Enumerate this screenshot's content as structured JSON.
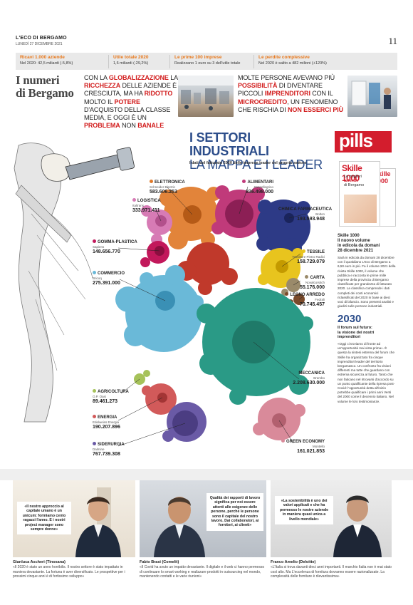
{
  "header": {
    "paper_name": "L'ECO DI BERGAMO",
    "date": "LUNEDÌ 27 DICEMBRE 2021",
    "page_number": "11"
  },
  "strip": [
    {
      "title": "Ricavi 1.000 aziende",
      "text": "Nel 2020: 42,5 miliardi (-5,8%)"
    },
    {
      "title": "Utile totale 2020",
      "text": "1,6 miliardi (-29,2%)"
    },
    {
      "title": "Le prime 100 imprese",
      "text": "Realizzano 1 euro su 3 dell'utile totale"
    },
    {
      "title": "Le perdite complessive",
      "text": "Nel 2020 è salito a 482 milioni (+120%)"
    }
  ],
  "intro": {
    "section_title_1": "I numeri",
    "section_title_2": "di Bergamo",
    "left_text": [
      {
        "t": "CON LA ",
        "h": false
      },
      {
        "t": "GLOBALIZZAZIONE",
        "h": true
      },
      {
        "t": " LA ",
        "h": false
      },
      {
        "t": "RICCHEZZA",
        "h": true
      },
      {
        "t": " DELLE AZIENDE È CRESCIUTA, MA HA ",
        "h": false
      },
      {
        "t": "RIDOTTO",
        "h": true
      },
      {
        "t": " MOLTO IL ",
        "h": false
      },
      {
        "t": "POTERE",
        "h": true
      },
      {
        "t": " D'ACQUISTO DELLA CLASSE MEDIA, E OGGI È UN ",
        "h": false
      },
      {
        "t": "PROBLEMA",
        "h": true
      },
      {
        "t": " NON ",
        "h": false
      },
      {
        "t": "BANALE",
        "h": true
      }
    ],
    "right_text": [
      {
        "t": "MOLTE PERSONE AVEVANO PIÙ ",
        "h": false
      },
      {
        "t": "POSSIBILITÀ",
        "h": true
      },
      {
        "t": " DI DIVENTARE PICCOLI ",
        "h": false
      },
      {
        "t": "IMPRENDITORI",
        "h": true
      },
      {
        "t": " CON IL ",
        "h": false
      },
      {
        "t": "MICROCREDITO",
        "h": true
      },
      {
        "t": ", UN FENOMENO CHE RISCHIA DI ",
        "h": false
      },
      {
        "t": "NON ESSERCI PIÙ",
        "h": true
      }
    ]
  },
  "infographic": {
    "title_line1": "I SETTORI INDUSTRIALI",
    "title_line2": "LA MAPPA E I LEADER",
    "subtitle": "I dati del fatturato 2020 delle imprese leader del proprio settore"
  },
  "sectors": [
    {
      "name": "ELETTRONICA",
      "company": "Schneider Electric",
      "value": "583.606.253",
      "color": "#e07a2a"
    },
    {
      "name": "ALIMENTARI",
      "company": "Sanpellegrino",
      "value": "836.498.000",
      "color": "#c03a7a"
    },
    {
      "name": "LOGISTICA",
      "company": "Italtrans",
      "value": "333.971.411",
      "color": "#d77bb5"
    },
    {
      "name": "CHIMICA FARMACEUTICA",
      "company": "Bolton",
      "value": "193.593.948",
      "color": "#2d3a86"
    },
    {
      "name": "GOMMA-PLASTICA",
      "company": "Sapiens",
      "value": "148.656.770",
      "color": "#c2185b"
    },
    {
      "name": "COMMERCIO",
      "company": "Bricoq",
      "value": "275.391.000",
      "color": "#6ab9d8"
    },
    {
      "name": "TESSILE",
      "company": "Tessiltore Pietro Radici",
      "value": "158.729.079",
      "color": "#e8c41e"
    },
    {
      "name": "CARTA",
      "company": "Novalcorsitch",
      "value": "55.176.000",
      "color": "#9a8a6a"
    },
    {
      "name": "LEGNO ARREDO",
      "company": "Fedrali",
      "value": "70.745.457",
      "color": "#7a4a2a"
    },
    {
      "name": "MECCANICA",
      "company": "Brembo",
      "value": "2.208.630.000",
      "color": "#2a9a86"
    },
    {
      "name": "AGRICOLTURA",
      "company": "O.P. Oasi",
      "value": "89.461.273",
      "color": "#a6c25a"
    },
    {
      "name": "ENERGIA",
      "company": "Edelweiss Energia",
      "value": "190.207.896",
      "color": "#d25a5a"
    },
    {
      "name": "SIDERURGIA",
      "company": "Dalmine",
      "value": "767.739.308",
      "color": "#6a5aa6"
    },
    {
      "name": "GREEN ECONOMY",
      "company": "Montello",
      "value": "161.021.853",
      "color": "#d98a9a"
    }
  ],
  "pills": {
    "label": "pills",
    "magazine_brand": "Skille 1000",
    "magazine_cover_line1": "Le migliori",
    "magazine_cover_line2": "aziende",
    "magazine_cover_line3": "di Bergamo"
  },
  "side": {
    "title_line1": "Skille 1000",
    "title_line2": "Il nuovo volume",
    "title_line3": "in edicola da domani",
    "title_line4": "28 dicembre 2021",
    "body": "Sarà in edicola da domani 28 dicembre con il quotidiano L'Eco di Bergamo a 6,50 euro in più. Fa il volume 2021 della rivista Skille 1000, il volume che pubblica e racconta le prime mille imprese della provincia di Bergamo classificate per grandezza di fatturato 2020. La classifica comprende i dati completi dei conti economici riclassificati del 2020 in base ai dieci voci di bilancio. Sono presenti analisi e giudizi sulle persone industriali.",
    "year": "2030",
    "sub_line1": "Il forum sul futuro:",
    "sub_line2": "la visione dei nostri",
    "sub_line3": "imprenditori",
    "body2": "«Oggi ci troviamo di fronte ad un'opportunità mai vista prima». È questa la sintesi estrema del forum che Skille ha organizzato fra cinque imprenditori leader del territorio bergamasco. Un confronto fra visioni differenti ma tutte che guardano con estrema sicurezza al futuro. Tanto che non faticano nel ritrovarsi d'accordo su un punto qualificante della ripresa post-Covid: l'opportunità detta all'inizio potrebbe qualificare i primi anni Venti del 2000 come il decennio italiano. Nel volume le loro testimonianze."
  },
  "people": [
    {
      "quote": "«Il nostro approccio al capitale umano è un unicum: formiamo cento ragazzi l'anno. E i nostri project manager sono sempre donne»",
      "name": "Gianluca Ascheri (Tinosana)",
      "text": "«Il 2020 è stato un anno horribilis. Il nostro settore è stato impattato in maniera devastante. La fortuna è aver diversificato. Le prospettive per i prossimi cinque anni è di fortissimo sviluppo»"
    },
    {
      "quote": "Qualità dei rapporti di lavoro significa per noi essere attenti alle esigenze delle persone, perché le persone sono il capitale del nostro lavoro. Dai collaboratori, ai fornitori, ai clienti»",
      "name": "Fabio Brasi (Comelit)",
      "text": "«Il Covid ha avuto un impatto devastante. Il digitale e il web ci hanno permesso di continuare lo smart working e realizzare prodotti in outsourcing nel mondo, mantenendo contatti e le varie riunioni»"
    },
    {
      "quote": "«La sostenibilità è uno dei valori applicati e che ha permesso le nostre aziende in maniera quasi unica a livello mondiale»",
      "name": "Franco Amelio (Deloitte)",
      "text": "«L'Italia si trova davanti dieci anni importanti. Il marchio Italia non è mai stato così alto. Ma L'eccelenza di fornitura dovranno essere razionalizzate. La complessità delle forniture è rilevantissima»"
    }
  ]
}
